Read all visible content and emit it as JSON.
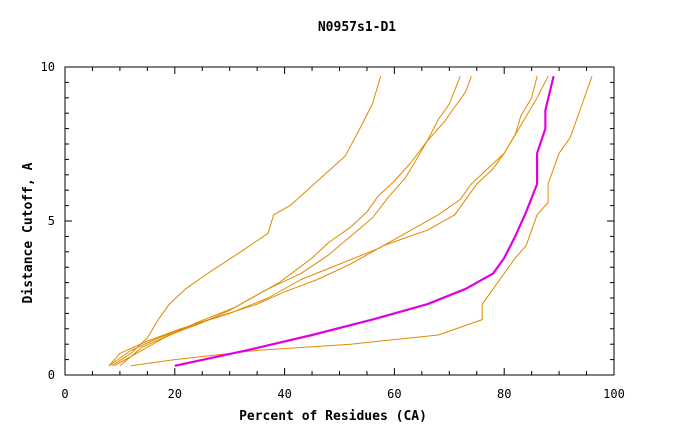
{
  "chart_data": {
    "type": "line",
    "title": "N0957s1-D1",
    "xlabel": "Percent of Residues (CA)",
    "ylabel": "Distance Cutoff, A",
    "xlim": [
      0,
      100
    ],
    "ylim": [
      0,
      10
    ],
    "x_ticks": [
      0,
      20,
      40,
      60,
      80,
      100
    ],
    "x_tick_labels": [
      "0",
      "20",
      "40",
      "60",
      "80",
      "100"
    ],
    "y_ticks": [
      0,
      5,
      10
    ],
    "y_tick_labels": [
      "0",
      "5",
      "10"
    ],
    "grid": false,
    "colors": {
      "others": "#e08a00",
      "highlight": "#e000e0"
    },
    "series": [
      {
        "highlight": false,
        "points": [
          [
            8.5,
            0.3
          ],
          [
            12,
            0.7
          ],
          [
            15,
            1.2
          ],
          [
            17,
            1.8
          ],
          [
            19,
            2.3
          ],
          [
            22,
            2.8
          ],
          [
            26,
            3.3
          ],
          [
            32,
            4.0
          ],
          [
            37,
            4.6
          ],
          [
            38,
            5.2
          ],
          [
            41,
            5.5
          ],
          [
            46,
            6.3
          ],
          [
            51,
            7.1
          ],
          [
            54,
            8.1
          ],
          [
            56,
            8.8
          ],
          [
            57.5,
            9.7
          ]
        ]
      },
      {
        "highlight": false,
        "points": [
          [
            9,
            0.3
          ],
          [
            13,
            0.7
          ],
          [
            18,
            1.2
          ],
          [
            24,
            1.7
          ],
          [
            31,
            2.2
          ],
          [
            37,
            2.8
          ],
          [
            43,
            3.3
          ],
          [
            48,
            3.9
          ],
          [
            52,
            4.5
          ],
          [
            56,
            5.1
          ],
          [
            59,
            5.8
          ],
          [
            62,
            6.4
          ],
          [
            64,
            7.0
          ],
          [
            66,
            7.6
          ],
          [
            68,
            8.3
          ],
          [
            70,
            8.8
          ],
          [
            72,
            9.7
          ]
        ]
      },
      {
        "highlight": false,
        "points": [
          [
            10,
            0.3
          ],
          [
            14,
            0.9
          ],
          [
            19,
            1.3
          ],
          [
            25,
            1.7
          ],
          [
            30,
            2.1
          ],
          [
            34,
            2.5
          ],
          [
            39,
            3.0
          ],
          [
            42,
            3.4
          ],
          [
            45,
            3.8
          ],
          [
            48,
            4.3
          ],
          [
            52,
            4.8
          ],
          [
            55,
            5.3
          ],
          [
            57,
            5.8
          ],
          [
            60,
            6.3
          ],
          [
            63,
            6.9
          ],
          [
            66,
            7.6
          ],
          [
            69,
            8.2
          ],
          [
            71,
            8.7
          ],
          [
            73,
            9.2
          ],
          [
            74,
            9.7
          ]
        ]
      },
      {
        "highlight": false,
        "points": [
          [
            8,
            0.3
          ],
          [
            12,
            0.8
          ],
          [
            17,
            1.2
          ],
          [
            23,
            1.6
          ],
          [
            30,
            2.0
          ],
          [
            37,
            2.5
          ],
          [
            43,
            3.1
          ],
          [
            50,
            3.6
          ],
          [
            57,
            4.1
          ],
          [
            63,
            4.7
          ],
          [
            68,
            5.2
          ],
          [
            72,
            5.7
          ],
          [
            74,
            6.2
          ],
          [
            77,
            6.7
          ],
          [
            80,
            7.2
          ],
          [
            82,
            7.8
          ],
          [
            84,
            8.4
          ],
          [
            86,
            9.0
          ],
          [
            88,
            9.7
          ]
        ]
      },
      {
        "highlight": false,
        "points": [
          [
            8,
            0.3
          ],
          [
            10,
            0.7
          ],
          [
            15,
            1.1
          ],
          [
            21,
            1.5
          ],
          [
            28,
            1.9
          ],
          [
            35,
            2.3
          ],
          [
            40,
            2.7
          ],
          [
            46,
            3.1
          ],
          [
            52,
            3.6
          ],
          [
            58,
            4.2
          ],
          [
            66,
            4.7
          ],
          [
            71,
            5.2
          ],
          [
            73,
            5.7
          ],
          [
            75,
            6.2
          ],
          [
            78,
            6.7
          ],
          [
            80,
            7.2
          ],
          [
            82,
            7.8
          ],
          [
            83,
            8.4
          ],
          [
            85,
            9.0
          ],
          [
            86,
            9.7
          ]
        ]
      },
      {
        "highlight": false,
        "points": [
          [
            12,
            0.3
          ],
          [
            20,
            0.5
          ],
          [
            35,
            0.8
          ],
          [
            52,
            1.0
          ],
          [
            68,
            1.3
          ],
          [
            76,
            1.8
          ],
          [
            76,
            2.3
          ],
          [
            78,
            2.8
          ],
          [
            80,
            3.3
          ],
          [
            82,
            3.8
          ],
          [
            84,
            4.2
          ],
          [
            85,
            4.7
          ],
          [
            86,
            5.2
          ],
          [
            88,
            5.6
          ],
          [
            88,
            6.2
          ],
          [
            89,
            6.7
          ],
          [
            90,
            7.2
          ],
          [
            92,
            7.7
          ],
          [
            93,
            8.2
          ],
          [
            94,
            8.7
          ],
          [
            96,
            9.7
          ]
        ]
      },
      {
        "highlight": true,
        "points": [
          [
            20,
            0.3
          ],
          [
            33,
            0.8
          ],
          [
            45,
            1.3
          ],
          [
            56,
            1.8
          ],
          [
            66,
            2.3
          ],
          [
            73,
            2.8
          ],
          [
            78,
            3.3
          ],
          [
            80,
            3.8
          ],
          [
            82,
            4.5
          ],
          [
            84,
            5.3
          ],
          [
            86,
            6.2
          ],
          [
            86,
            7.2
          ],
          [
            87.5,
            8.0
          ],
          [
            87.5,
            8.6
          ],
          [
            89,
            9.7
          ]
        ]
      }
    ]
  }
}
